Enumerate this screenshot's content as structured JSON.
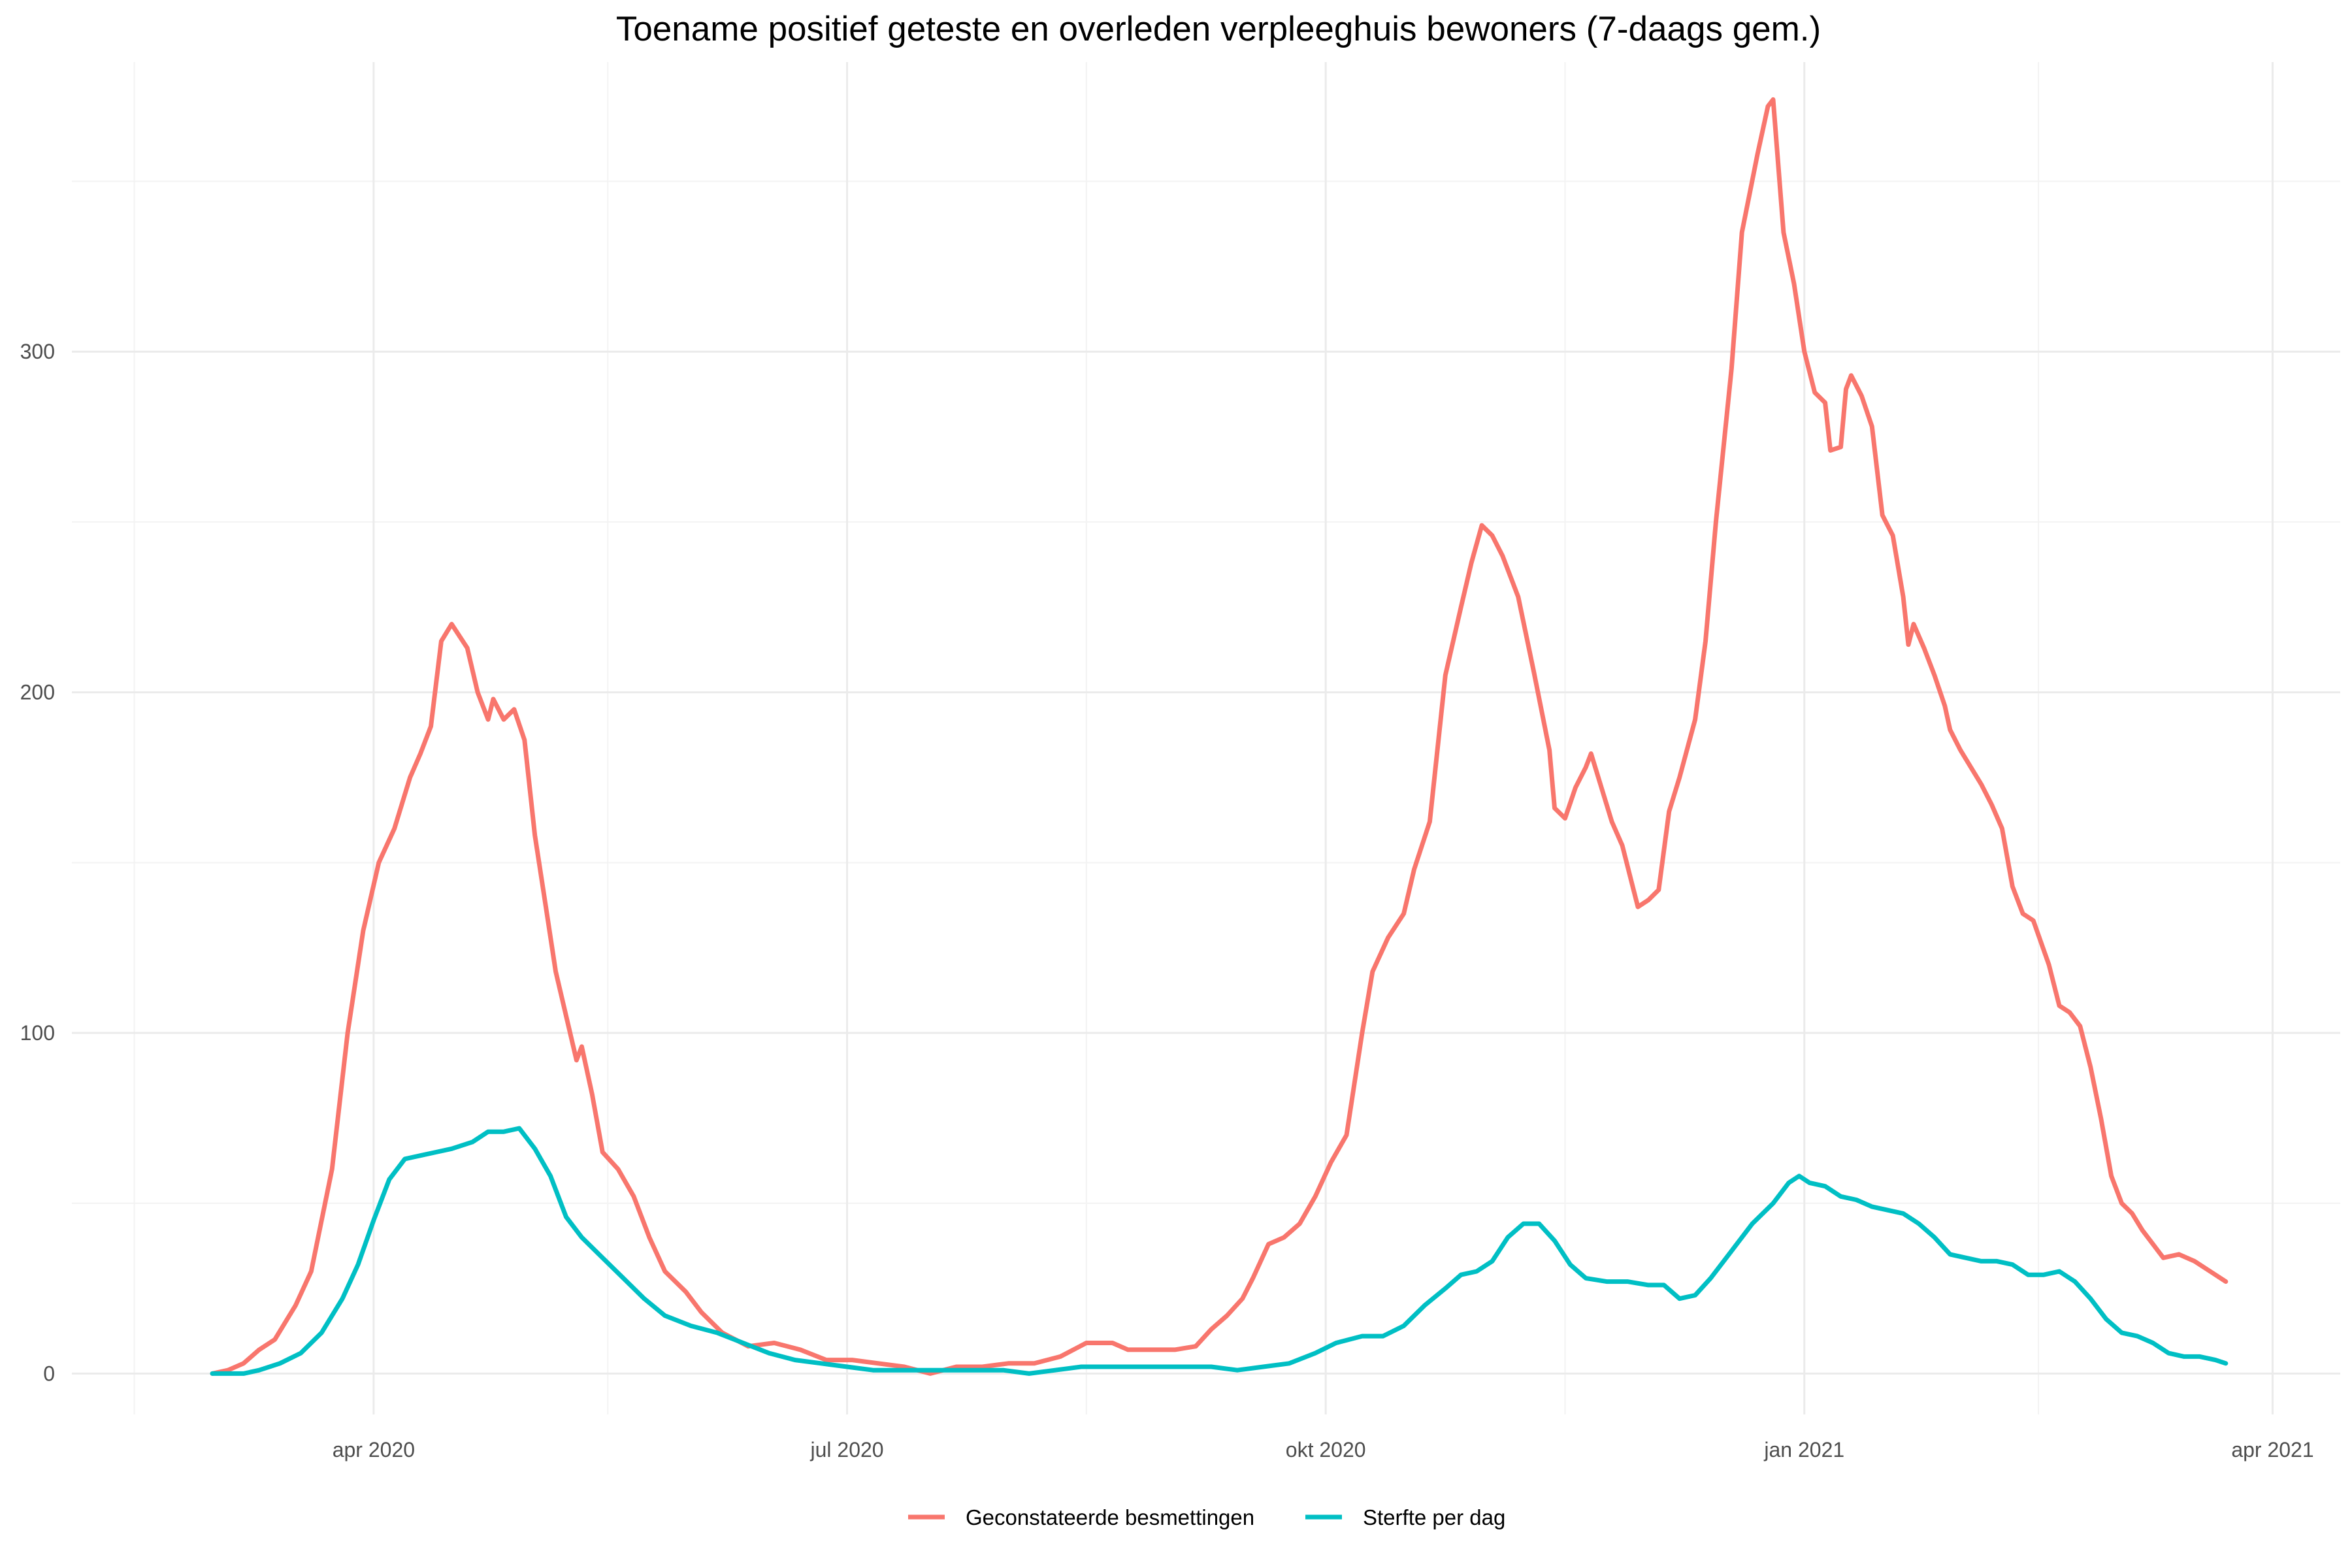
{
  "chart_data": {
    "type": "line",
    "title": "Toename positief geteste en overleden verpleeghuis bewoners (7-daags gem.)",
    "xlabel": "",
    "ylabel": "",
    "x_axis": {
      "type": "date",
      "range": [
        "2020-02-03",
        "2021-04-14"
      ],
      "ticks": [
        {
          "date": "2020-04-01",
          "label": "apr 2020"
        },
        {
          "date": "2020-07-01",
          "label": "jul 2020"
        },
        {
          "date": "2020-10-01",
          "label": "okt 2020"
        },
        {
          "date": "2021-01-01",
          "label": "jan 2021"
        },
        {
          "date": "2021-04-01",
          "label": "apr 2021"
        }
      ],
      "minor_ticks": [
        "2020-02-15",
        "2020-05-16",
        "2020-08-16",
        "2020-11-16",
        "2021-02-15"
      ]
    },
    "y_axis": {
      "range": [
        -12,
        385
      ],
      "ticks": [
        0,
        100,
        200,
        300
      ],
      "minor_ticks": [
        50,
        150,
        250,
        350
      ]
    },
    "grid": true,
    "legend": {
      "position": "bottom"
    },
    "series": [
      {
        "name": "Geconstateerde besmettingen",
        "color": "#F8766D",
        "points": [
          [
            "2020-03-01",
            0
          ],
          [
            "2020-03-04",
            1
          ],
          [
            "2020-03-07",
            3
          ],
          [
            "2020-03-10",
            7
          ],
          [
            "2020-03-13",
            10
          ],
          [
            "2020-03-17",
            20
          ],
          [
            "2020-03-20",
            30
          ],
          [
            "2020-03-24",
            60
          ],
          [
            "2020-03-27",
            100
          ],
          [
            "2020-03-30",
            130
          ],
          [
            "2020-04-02",
            150
          ],
          [
            "2020-04-05",
            160
          ],
          [
            "2020-04-08",
            175
          ],
          [
            "2020-04-10",
            182
          ],
          [
            "2020-04-12",
            190
          ],
          [
            "2020-04-14",
            215
          ],
          [
            "2020-04-16",
            220
          ],
          [
            "2020-04-19",
            213
          ],
          [
            "2020-04-21",
            200
          ],
          [
            "2020-04-23",
            192
          ],
          [
            "2020-04-24",
            198
          ],
          [
            "2020-04-26",
            192
          ],
          [
            "2020-04-28",
            195
          ],
          [
            "2020-04-30",
            186
          ],
          [
            "2020-05-02",
            158
          ],
          [
            "2020-05-04",
            138
          ],
          [
            "2020-05-06",
            118
          ],
          [
            "2020-05-08",
            105
          ],
          [
            "2020-05-10",
            92
          ],
          [
            "2020-05-11",
            96
          ],
          [
            "2020-05-13",
            82
          ],
          [
            "2020-05-15",
            65
          ],
          [
            "2020-05-18",
            60
          ],
          [
            "2020-05-21",
            52
          ],
          [
            "2020-05-24",
            40
          ],
          [
            "2020-05-27",
            30
          ],
          [
            "2020-05-31",
            24
          ],
          [
            "2020-06-03",
            18
          ],
          [
            "2020-06-07",
            12
          ],
          [
            "2020-06-12",
            8
          ],
          [
            "2020-06-17",
            9
          ],
          [
            "2020-06-22",
            7
          ],
          [
            "2020-06-27",
            4
          ],
          [
            "2020-07-02",
            4
          ],
          [
            "2020-07-07",
            3
          ],
          [
            "2020-07-12",
            2
          ],
          [
            "2020-07-17",
            0
          ],
          [
            "2020-07-22",
            2
          ],
          [
            "2020-07-27",
            2
          ],
          [
            "2020-08-01",
            3
          ],
          [
            "2020-08-06",
            3
          ],
          [
            "2020-08-11",
            5
          ],
          [
            "2020-08-16",
            9
          ],
          [
            "2020-08-21",
            9
          ],
          [
            "2020-08-24",
            7
          ],
          [
            "2020-08-28",
            7
          ],
          [
            "2020-09-02",
            7
          ],
          [
            "2020-09-06",
            8
          ],
          [
            "2020-09-09",
            13
          ],
          [
            "2020-09-12",
            17
          ],
          [
            "2020-09-15",
            22
          ],
          [
            "2020-09-17",
            28
          ],
          [
            "2020-09-20",
            38
          ],
          [
            "2020-09-23",
            40
          ],
          [
            "2020-09-26",
            44
          ],
          [
            "2020-09-29",
            52
          ],
          [
            "2020-10-02",
            62
          ],
          [
            "2020-10-05",
            70
          ],
          [
            "2020-10-08",
            100
          ],
          [
            "2020-10-10",
            118
          ],
          [
            "2020-10-13",
            128
          ],
          [
            "2020-10-16",
            135
          ],
          [
            "2020-10-18",
            148
          ],
          [
            "2020-10-21",
            162
          ],
          [
            "2020-10-24",
            205
          ],
          [
            "2020-10-27",
            225
          ],
          [
            "2020-10-29",
            238
          ],
          [
            "2020-10-31",
            249
          ],
          [
            "2020-11-02",
            246
          ],
          [
            "2020-11-04",
            240
          ],
          [
            "2020-11-07",
            228
          ],
          [
            "2020-11-10",
            206
          ],
          [
            "2020-11-13",
            183
          ],
          [
            "2020-11-14",
            166
          ],
          [
            "2020-11-16",
            163
          ],
          [
            "2020-11-18",
            172
          ],
          [
            "2020-11-20",
            178
          ],
          [
            "2020-11-21",
            182
          ],
          [
            "2020-11-23",
            172
          ],
          [
            "2020-11-25",
            162
          ],
          [
            "2020-11-27",
            155
          ],
          [
            "2020-11-29",
            143
          ],
          [
            "2020-11-30",
            137
          ],
          [
            "2020-12-02",
            139
          ],
          [
            "2020-12-04",
            142
          ],
          [
            "2020-12-06",
            165
          ],
          [
            "2020-12-08",
            175
          ],
          [
            "2020-12-11",
            192
          ],
          [
            "2020-12-13",
            215
          ],
          [
            "2020-12-15",
            250
          ],
          [
            "2020-12-18",
            295
          ],
          [
            "2020-12-20",
            335
          ],
          [
            "2020-12-23",
            358
          ],
          [
            "2020-12-25",
            372
          ],
          [
            "2020-12-26",
            374
          ],
          [
            "2020-12-28",
            335
          ],
          [
            "2020-12-30",
            320
          ],
          [
            "2021-01-01",
            300
          ],
          [
            "2021-01-03",
            288
          ],
          [
            "2021-01-05",
            285
          ],
          [
            "2021-01-06",
            271
          ],
          [
            "2021-01-08",
            272
          ],
          [
            "2021-01-09",
            289
          ],
          [
            "2021-01-10",
            293
          ],
          [
            "2021-01-12",
            287
          ],
          [
            "2021-01-14",
            278
          ],
          [
            "2021-01-16",
            252
          ],
          [
            "2021-01-18",
            246
          ],
          [
            "2021-01-20",
            228
          ],
          [
            "2021-01-21",
            214
          ],
          [
            "2021-01-22",
            220
          ],
          [
            "2021-01-24",
            213
          ],
          [
            "2021-01-26",
            205
          ],
          [
            "2021-01-28",
            196
          ],
          [
            "2021-01-29",
            189
          ],
          [
            "2021-01-31",
            183
          ],
          [
            "2021-02-02",
            178
          ],
          [
            "2021-02-04",
            173
          ],
          [
            "2021-02-06",
            167
          ],
          [
            "2021-02-08",
            160
          ],
          [
            "2021-02-10",
            143
          ],
          [
            "2021-02-12",
            135
          ],
          [
            "2021-02-14",
            133
          ],
          [
            "2021-02-17",
            120
          ],
          [
            "2021-02-19",
            108
          ],
          [
            "2021-02-21",
            106
          ],
          [
            "2021-02-23",
            102
          ],
          [
            "2021-02-25",
            90
          ],
          [
            "2021-02-27",
            75
          ],
          [
            "2021-03-01",
            58
          ],
          [
            "2021-03-03",
            50
          ],
          [
            "2021-03-05",
            47
          ],
          [
            "2021-03-07",
            42
          ],
          [
            "2021-03-09",
            38
          ],
          [
            "2021-03-11",
            34
          ],
          [
            "2021-03-14",
            35
          ],
          [
            "2021-03-17",
            33
          ],
          [
            "2021-03-20",
            30
          ],
          [
            "2021-03-23",
            27
          ]
        ]
      },
      {
        "name": "Sterfte per dag",
        "color": "#00BFC4",
        "points": [
          [
            "2020-03-01",
            0
          ],
          [
            "2020-03-07",
            0
          ],
          [
            "2020-03-10",
            1
          ],
          [
            "2020-03-14",
            3
          ],
          [
            "2020-03-18",
            6
          ],
          [
            "2020-03-22",
            12
          ],
          [
            "2020-03-26",
            22
          ],
          [
            "2020-03-29",
            32
          ],
          [
            "2020-04-01",
            45
          ],
          [
            "2020-04-04",
            57
          ],
          [
            "2020-04-07",
            63
          ],
          [
            "2020-04-10",
            64
          ],
          [
            "2020-04-13",
            65
          ],
          [
            "2020-04-16",
            66
          ],
          [
            "2020-04-20",
            68
          ],
          [
            "2020-04-23",
            71
          ],
          [
            "2020-04-26",
            71
          ],
          [
            "2020-04-29",
            72
          ],
          [
            "2020-05-02",
            66
          ],
          [
            "2020-05-05",
            58
          ],
          [
            "2020-05-08",
            46
          ],
          [
            "2020-05-11",
            40
          ],
          [
            "2020-05-15",
            34
          ],
          [
            "2020-05-19",
            28
          ],
          [
            "2020-05-23",
            22
          ],
          [
            "2020-05-27",
            17
          ],
          [
            "2020-06-01",
            14
          ],
          [
            "2020-06-06",
            12
          ],
          [
            "2020-06-11",
            9
          ],
          [
            "2020-06-16",
            6
          ],
          [
            "2020-06-21",
            4
          ],
          [
            "2020-06-26",
            3
          ],
          [
            "2020-07-01",
            2
          ],
          [
            "2020-07-06",
            1
          ],
          [
            "2020-07-11",
            1
          ],
          [
            "2020-07-16",
            1
          ],
          [
            "2020-07-21",
            1
          ],
          [
            "2020-07-26",
            1
          ],
          [
            "2020-07-31",
            1
          ],
          [
            "2020-08-05",
            0
          ],
          [
            "2020-08-10",
            1
          ],
          [
            "2020-08-15",
            2
          ],
          [
            "2020-08-20",
            2
          ],
          [
            "2020-08-25",
            2
          ],
          [
            "2020-08-30",
            2
          ],
          [
            "2020-09-04",
            2
          ],
          [
            "2020-09-09",
            2
          ],
          [
            "2020-09-14",
            1
          ],
          [
            "2020-09-19",
            2
          ],
          [
            "2020-09-24",
            3
          ],
          [
            "2020-09-29",
            6
          ],
          [
            "2020-10-03",
            9
          ],
          [
            "2020-10-08",
            11
          ],
          [
            "2020-10-12",
            11
          ],
          [
            "2020-10-16",
            14
          ],
          [
            "2020-10-20",
            20
          ],
          [
            "2020-10-24",
            25
          ],
          [
            "2020-10-27",
            29
          ],
          [
            "2020-10-30",
            30
          ],
          [
            "2020-11-02",
            33
          ],
          [
            "2020-11-05",
            40
          ],
          [
            "2020-11-08",
            44
          ],
          [
            "2020-11-11",
            44
          ],
          [
            "2020-11-14",
            39
          ],
          [
            "2020-11-17",
            32
          ],
          [
            "2020-11-20",
            28
          ],
          [
            "2020-11-24",
            27
          ],
          [
            "2020-11-28",
            27
          ],
          [
            "2020-12-02",
            26
          ],
          [
            "2020-12-05",
            26
          ],
          [
            "2020-12-08",
            22
          ],
          [
            "2020-12-11",
            23
          ],
          [
            "2020-12-14",
            28
          ],
          [
            "2020-12-18",
            36
          ],
          [
            "2020-12-22",
            44
          ],
          [
            "2020-12-26",
            50
          ],
          [
            "2020-12-29",
            56
          ],
          [
            "2020-12-31",
            58
          ],
          [
            "2021-01-02",
            56
          ],
          [
            "2021-01-05",
            55
          ],
          [
            "2021-01-08",
            52
          ],
          [
            "2021-01-11",
            51
          ],
          [
            "2021-01-14",
            49
          ],
          [
            "2021-01-17",
            48
          ],
          [
            "2021-01-20",
            47
          ],
          [
            "2021-01-23",
            44
          ],
          [
            "2021-01-26",
            40
          ],
          [
            "2021-01-29",
            35
          ],
          [
            "2021-02-01",
            34
          ],
          [
            "2021-02-04",
            33
          ],
          [
            "2021-02-07",
            33
          ],
          [
            "2021-02-10",
            32
          ],
          [
            "2021-02-13",
            29
          ],
          [
            "2021-02-16",
            29
          ],
          [
            "2021-02-19",
            30
          ],
          [
            "2021-02-22",
            27
          ],
          [
            "2021-02-25",
            22
          ],
          [
            "2021-02-28",
            16
          ],
          [
            "2021-03-03",
            12
          ],
          [
            "2021-03-06",
            11
          ],
          [
            "2021-03-09",
            9
          ],
          [
            "2021-03-12",
            6
          ],
          [
            "2021-03-15",
            5
          ],
          [
            "2021-03-18",
            5
          ],
          [
            "2021-03-21",
            4
          ],
          [
            "2021-03-23",
            3
          ]
        ]
      }
    ]
  }
}
